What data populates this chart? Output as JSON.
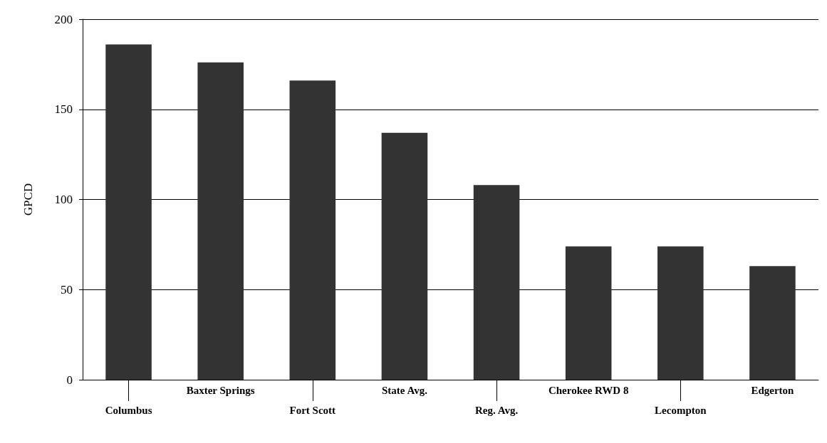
{
  "chart_data": {
    "type": "bar",
    "ylabel": "GPCD",
    "categories": [
      "Columbus",
      "Baxter Springs",
      "Fort Scott",
      "State Avg.",
      "Reg. Avg.",
      "Cherokee RWD 8",
      "Lecompton",
      "Edgerton"
    ],
    "values": [
      186,
      176,
      166,
      137,
      108,
      74,
      74,
      63
    ],
    "color": "#333333",
    "ylim": [
      0,
      200
    ],
    "yticks": [
      0,
      50,
      100,
      150,
      200
    ],
    "grid": "y"
  }
}
